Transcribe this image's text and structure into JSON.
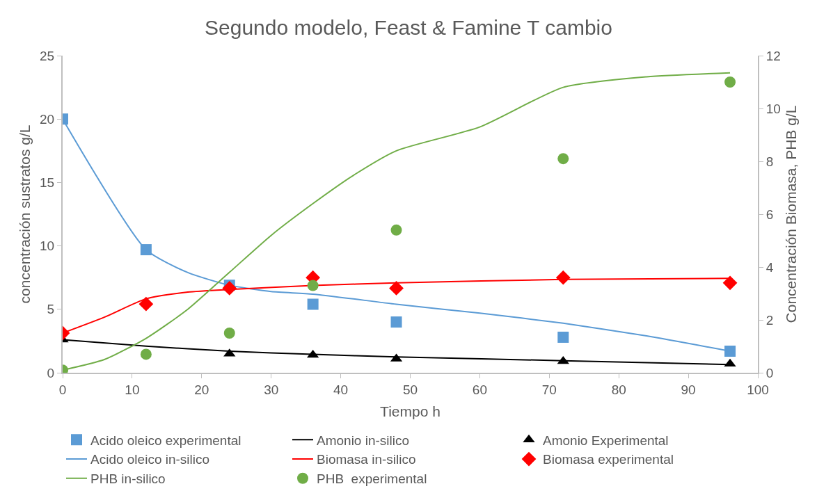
{
  "chart_data": {
    "type": "line",
    "title": "Segundo modelo, Feast & Famine T cambio",
    "xlabel": "Tiempo h",
    "ylabel": "concentración sustratos g/L",
    "y2label": "Concentración Biomasa, PHB g/L",
    "xlim": [
      0,
      100
    ],
    "xticks": [
      0,
      10,
      20,
      30,
      40,
      50,
      60,
      70,
      80,
      90,
      100
    ],
    "ylim": [
      0,
      25
    ],
    "yticks": [
      0,
      5,
      10,
      15,
      20,
      25
    ],
    "y2lim": [
      0,
      12
    ],
    "y2ticks": [
      0,
      2,
      4,
      6,
      8,
      10,
      12
    ],
    "legend": "bottom",
    "series": [
      {
        "name": "Acido oleico experimental",
        "type": "scatter",
        "marker": "square",
        "color": "#5b9bd5",
        "x": [
          0,
          12,
          24,
          36,
          48,
          72,
          96
        ],
        "values": [
          20.0,
          9.7,
          6.9,
          5.4,
          4.0,
          2.8,
          1.7
        ]
      },
      {
        "name": "Amonio in-silico",
        "marker": "none",
        "color": "#000000",
        "x": [
          0,
          12,
          24,
          36,
          48,
          72,
          96
        ],
        "values": [
          2.6,
          2.1,
          1.7,
          1.45,
          1.25,
          0.95,
          0.65
        ]
      },
      {
        "name": "Amonio Experimental",
        "type": "scatter",
        "marker": "triangle",
        "color": "#000000",
        "x": [
          0,
          12,
          24,
          36,
          48,
          72,
          96
        ],
        "values": [
          2.6,
          null,
          1.5,
          1.4,
          1.1,
          0.9,
          0.7
        ]
      },
      {
        "name": "Acido oleico in-silico",
        "marker": "none",
        "color": "#5b9bd5",
        "x": [
          0,
          12,
          18,
          24,
          30,
          36,
          48,
          60,
          72,
          84,
          96
        ],
        "values": [
          20.0,
          9.7,
          7.9,
          6.9,
          6.4,
          6.2,
          5.4,
          4.7,
          3.9,
          2.9,
          1.7
        ]
      },
      {
        "name": "Biomasa in-silico",
        "marker": "none",
        "color": "#ff0000",
        "axis": "y2",
        "x": [
          0,
          6,
          12,
          18,
          24,
          36,
          48,
          72,
          96
        ],
        "values": [
          1.5,
          2.1,
          2.8,
          3.05,
          3.15,
          3.3,
          3.4,
          3.53,
          3.57
        ]
      },
      {
        "name": "Biomasa experimental",
        "type": "scatter",
        "marker": "diamond",
        "color": "#ff0000",
        "axis": "y2",
        "x": [
          0,
          12,
          24,
          36,
          48,
          72,
          96
        ],
        "values": [
          1.5,
          2.6,
          3.2,
          3.6,
          3.2,
          3.6,
          3.4
        ]
      },
      {
        "name": "PHB in-silico",
        "marker": "none",
        "color": "#70ad47",
        "axis": "y2",
        "x": [
          0,
          6,
          12,
          18,
          24,
          30,
          36,
          42,
          48,
          60,
          72,
          84,
          96
        ],
        "values": [
          0.1,
          0.5,
          1.3,
          2.4,
          3.8,
          5.2,
          6.4,
          7.5,
          8.4,
          9.3,
          10.8,
          11.2,
          11.35
        ]
      },
      {
        "name": "PHB  experimental",
        "type": "scatter",
        "marker": "circle",
        "color": "#70ad47",
        "axis": "y2",
        "x": [
          0,
          12,
          24,
          36,
          48,
          72,
          96
        ],
        "values": [
          0.1,
          0.7,
          1.5,
          3.3,
          5.4,
          8.1,
          11.0
        ]
      }
    ]
  }
}
